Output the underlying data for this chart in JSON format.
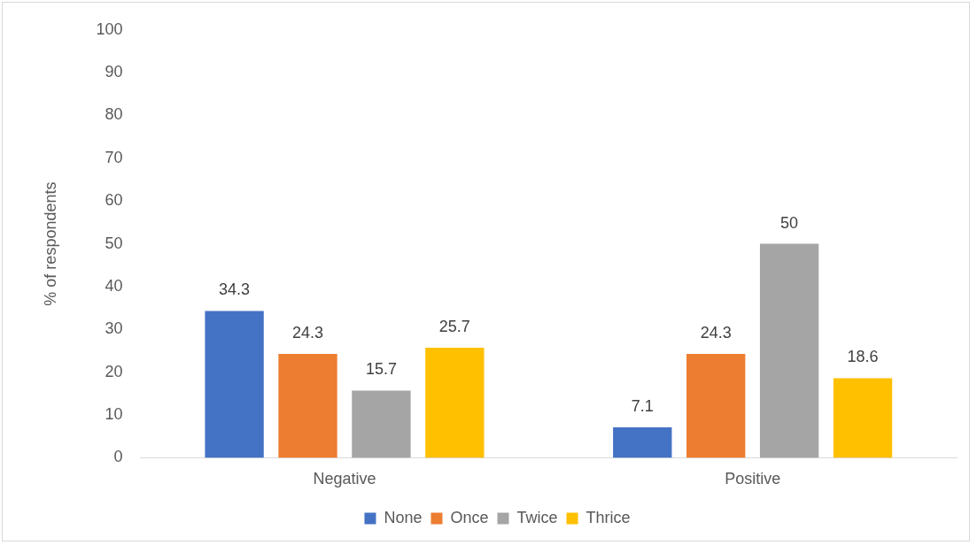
{
  "chart_data": {
    "type": "bar",
    "ylabel": "% of respondents",
    "categories": [
      "Negative",
      "Positive"
    ],
    "series": [
      {
        "name": "None",
        "color": "#4472c4",
        "values": [
          34.3,
          7.1
        ]
      },
      {
        "name": "Once",
        "color": "#ed7d31",
        "values": [
          24.3,
          24.3
        ]
      },
      {
        "name": "Twice",
        "color": "#a5a5a5",
        "values": [
          15.7,
          50
        ]
      },
      {
        "name": "Thrice",
        "color": "#ffc000",
        "values": [
          25.7,
          18.6
        ]
      }
    ],
    "ylim": [
      0,
      100
    ],
    "yticks": [
      0,
      10,
      20,
      30,
      40,
      50,
      60,
      70,
      80,
      90,
      100
    ],
    "grid": false,
    "legend": "bottom",
    "data_labels": true
  }
}
